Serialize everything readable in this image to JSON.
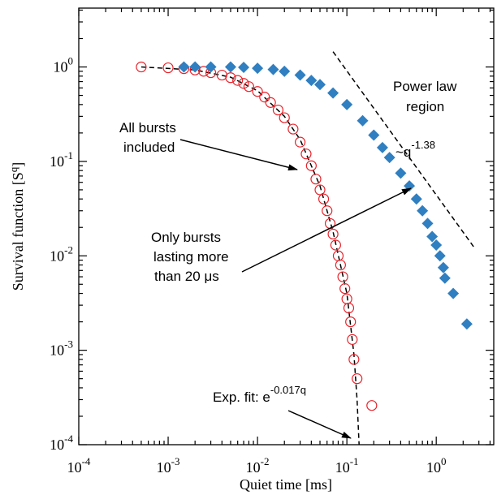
{
  "chart_data": {
    "type": "scatter",
    "log_x": true,
    "log_y": true,
    "xlabel": "Quiet time [ms]",
    "ylabel": {
      "text": "Survival function [S",
      "sup": "q",
      "end": "]"
    },
    "xlim": [
      0.0001,
      4.4
    ],
    "ylim": [
      0.0001,
      4.2
    ],
    "xticks": [
      {
        "value": 0.0001,
        "label": "10",
        "sup": "-4"
      },
      {
        "value": 0.001,
        "label": "10",
        "sup": "-3"
      },
      {
        "value": 0.01,
        "label": "10",
        "sup": "-2"
      },
      {
        "value": 0.1,
        "label": "10",
        "sup": "-1"
      },
      {
        "value": 1,
        "label": "10",
        "sup": "0"
      }
    ],
    "yticks": [
      {
        "value": 0.0001,
        "label": "10",
        "sup": "-4"
      },
      {
        "value": 0.001,
        "label": "10",
        "sup": "-3"
      },
      {
        "value": 0.01,
        "label": "10",
        "sup": "-2"
      },
      {
        "value": 0.1,
        "label": "10",
        "sup": "-1"
      },
      {
        "value": 1,
        "label": "10",
        "sup": "0"
      }
    ],
    "xminor": [
      0.0002,
      0.0003,
      0.0004,
      0.0005,
      0.0006,
      0.0007,
      0.0008,
      0.0009,
      0.002,
      0.003,
      0.004,
      0.005,
      0.006,
      0.007,
      0.008,
      0.009,
      0.02,
      0.03,
      0.04,
      0.05,
      0.06,
      0.07,
      0.08,
      0.09,
      0.2,
      0.3,
      0.4,
      0.5,
      0.6,
      0.7,
      0.8,
      0.9,
      2,
      3,
      4
    ],
    "yminor": [
      0.0002,
      0.0003,
      0.0004,
      0.0005,
      0.0006,
      0.0007,
      0.0008,
      0.0009,
      0.002,
      0.003,
      0.004,
      0.005,
      0.006,
      0.007,
      0.008,
      0.009,
      0.02,
      0.03,
      0.04,
      0.05,
      0.06,
      0.07,
      0.08,
      0.09,
      0.2,
      0.3,
      0.4,
      0.5,
      0.6,
      0.7,
      0.8,
      0.9,
      2,
      3,
      4
    ],
    "series": [
      {
        "marker": "circle",
        "color": "#e8222a",
        "x": [
          0.0005,
          0.001,
          0.0015,
          0.002,
          0.0025,
          0.003,
          0.004,
          0.005,
          0.006,
          0.007,
          0.008,
          0.01,
          0.012,
          0.014,
          0.017,
          0.02,
          0.025,
          0.03,
          0.035,
          0.04,
          0.045,
          0.05,
          0.055,
          0.06,
          0.065,
          0.07,
          0.075,
          0.08,
          0.085,
          0.09,
          0.095,
          0.1,
          0.105,
          0.11,
          0.115,
          0.12,
          0.13,
          0.19
        ],
        "values": [
          1.0,
          0.98,
          0.96,
          0.93,
          0.9,
          0.87,
          0.82,
          0.77,
          0.72,
          0.67,
          0.62,
          0.55,
          0.48,
          0.42,
          0.35,
          0.29,
          0.22,
          0.16,
          0.12,
          0.09,
          0.065,
          0.05,
          0.04,
          0.03,
          0.022,
          0.017,
          0.013,
          0.01,
          0.008,
          0.006,
          0.0045,
          0.0035,
          0.0028,
          0.002,
          0.0013,
          0.0008,
          0.0005,
          0.00026
        ]
      },
      {
        "marker": "diamond",
        "color": "#2f7fc1",
        "x": [
          0.0015,
          0.002,
          0.003,
          0.005,
          0.007,
          0.01,
          0.015,
          0.02,
          0.03,
          0.04,
          0.05,
          0.07,
          0.1,
          0.15,
          0.2,
          0.25,
          0.3,
          0.4,
          0.5,
          0.6,
          0.7,
          0.8,
          0.9,
          1.0,
          1.1,
          1.2,
          1.25,
          1.55,
          2.2
        ],
        "values": [
          1.0,
          1.0,
          1.0,
          1.0,
          0.99,
          0.97,
          0.94,
          0.9,
          0.82,
          0.72,
          0.65,
          0.53,
          0.4,
          0.27,
          0.19,
          0.14,
          0.11,
          0.075,
          0.055,
          0.04,
          0.03,
          0.022,
          0.016,
          0.013,
          0.01,
          0.0075,
          0.0058,
          0.004,
          0.0019
        ]
      },
      {
        "marker": "dashed-line",
        "color": "#000000",
        "x": [
          0.0005,
          0.002,
          0.005,
          0.01,
          0.02,
          0.03,
          0.05,
          0.07,
          0.1,
          0.12,
          0.13,
          0.137
        ],
        "values": [
          1.0,
          0.93,
          0.78,
          0.56,
          0.3,
          0.17,
          0.055,
          0.018,
          0.004,
          0.0009,
          0.0003,
          0.0001
        ]
      },
      {
        "marker": "dashed-line",
        "color": "#000000",
        "x": [
          0.07,
          2.7
        ],
        "values": [
          1.45,
          0.012
        ]
      }
    ],
    "annotations": {
      "power_law": [
        "Power law",
        "region"
      ],
      "slope": {
        "text": "~q",
        "sup": "-1.38"
      },
      "all_bursts": [
        "All bursts",
        "included"
      ],
      "only_bursts": [
        "Only bursts",
        "lasting more",
        "than 20 μs"
      ],
      "exp_fit": {
        "text": "Exp. fit: e",
        "sup": "-0.017q"
      }
    }
  }
}
